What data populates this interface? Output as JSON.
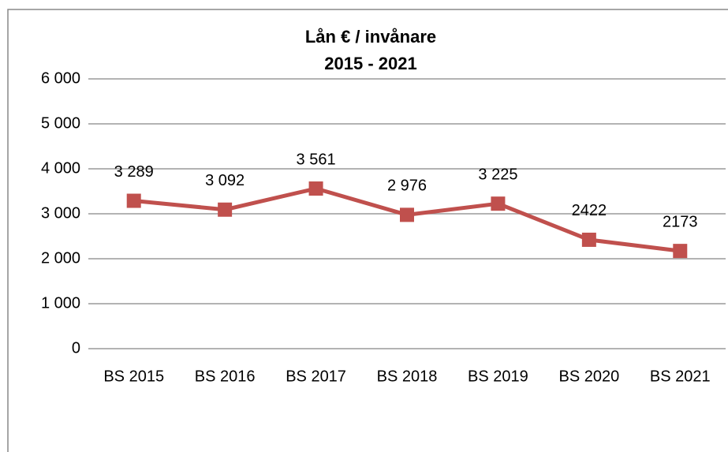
{
  "chart_data": {
    "type": "line",
    "title": [
      "Lån € / invånare",
      "2015 - 2021"
    ],
    "categories": [
      "BS 2015",
      "BS 2016",
      "BS 2017",
      "BS 2018",
      "BS 2019",
      "BS 2020",
      "BS 2021"
    ],
    "series": [
      {
        "name": null,
        "color": "#c0504d",
        "values": [
          3289,
          3092,
          3561,
          2976,
          3225,
          2422,
          2173
        ],
        "value_labels": [
          "3 289",
          "3 092",
          "3 561",
          "2 976",
          "3 225",
          "2422",
          "2173"
        ]
      }
    ],
    "ylim": [
      0,
      6000
    ],
    "yticks": [
      0,
      {
        "value": 1000,
        "label": "1 000"
      },
      {
        "value": 2000,
        "label": "2 000"
      },
      {
        "value": 3000,
        "label": "3 000"
      },
      {
        "value": 4000,
        "label": "4 000"
      },
      {
        "value": 5000,
        "label": "5 000"
      },
      {
        "value": 6000,
        "label": "6 000"
      }
    ],
    "grid": true
  }
}
